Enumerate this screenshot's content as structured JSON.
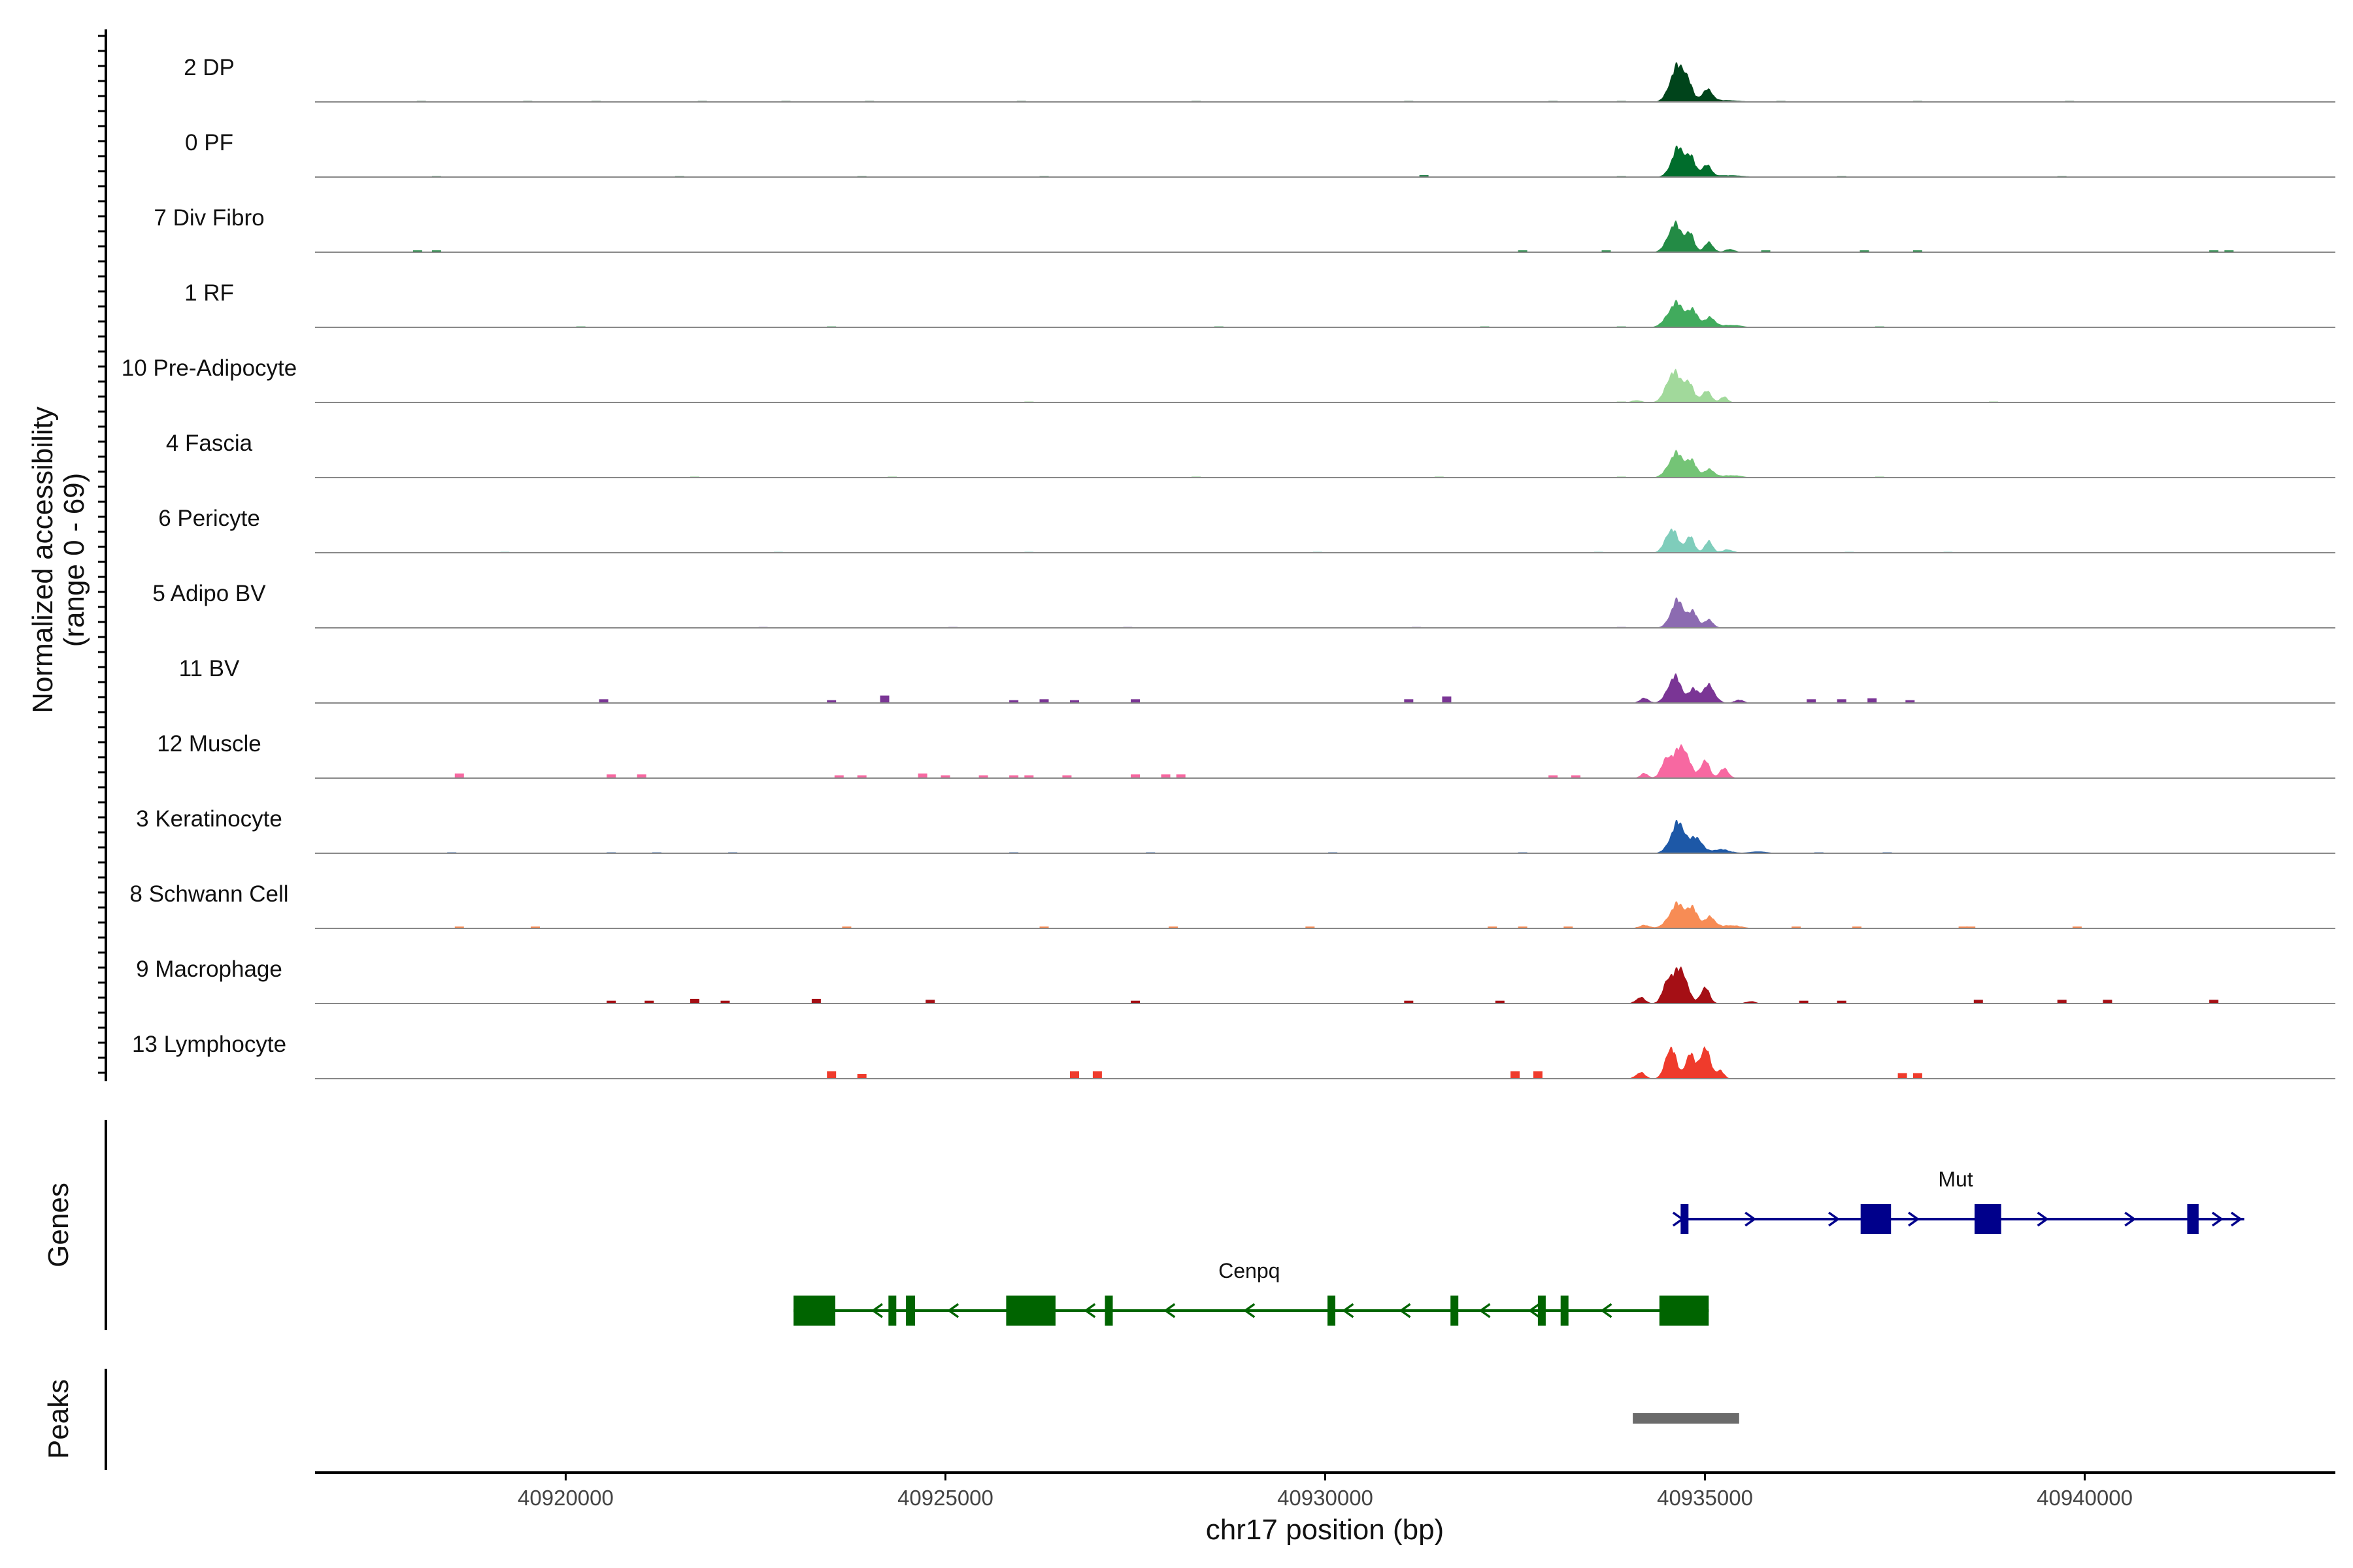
{
  "chart_data": {
    "type": "area",
    "title": "",
    "xlabel": "chr17 position (bp)",
    "ylabel": "Normalized accessibility",
    "ylabel_range": "(range 0 - 69)",
    "y_range": [
      0,
      69
    ],
    "xlim": [
      40916700,
      40943300
    ],
    "x_ticks": [
      40920000,
      40925000,
      40930000,
      40935000,
      40940000
    ],
    "tracks": [
      {
        "name": "2 DP",
        "color": "#00441b",
        "peaks": [
          [
            40934620,
            40,
            90
          ],
          [
            40934760,
            24,
            70
          ],
          [
            40935030,
            14,
            70
          ],
          [
            40935220,
            2,
            220
          ]
        ],
        "noise": [
          [
            40918100,
            1
          ],
          [
            40919500,
            1
          ],
          [
            40920400,
            1
          ],
          [
            40921800,
            1
          ],
          [
            40922900,
            1
          ],
          [
            40924000,
            1
          ],
          [
            40926000,
            1
          ],
          [
            40928300,
            1
          ],
          [
            40931100,
            1
          ],
          [
            40933000,
            1
          ],
          [
            40933900,
            1
          ],
          [
            40936000,
            1
          ],
          [
            40937800,
            1
          ],
          [
            40939800,
            1
          ]
        ]
      },
      {
        "name": "0 PF",
        "color": "#006d2c",
        "peaks": [
          [
            40934650,
            36,
            90
          ],
          [
            40934820,
            20,
            60
          ],
          [
            40935020,
            14,
            65
          ],
          [
            40935300,
            2,
            200
          ]
        ],
        "noise": [
          [
            40918300,
            1
          ],
          [
            40921500,
            1
          ],
          [
            40923900,
            1
          ],
          [
            40926300,
            1
          ],
          [
            40931300,
            2
          ],
          [
            40933900,
            1
          ],
          [
            40936800,
            1
          ],
          [
            40939700,
            1
          ]
        ]
      },
      {
        "name": "7 Div Fibro",
        "color": "#238b45",
        "peaks": [
          [
            40934600,
            35,
            90
          ],
          [
            40934800,
            22,
            60
          ],
          [
            40935050,
            12,
            60
          ],
          [
            40935330,
            4,
            60
          ]
        ],
        "noise": [
          [
            40918050,
            2
          ],
          [
            40918300,
            2
          ],
          [
            40932600,
            2
          ],
          [
            40933700,
            2
          ],
          [
            40935800,
            2
          ],
          [
            40937100,
            2
          ],
          [
            40937800,
            2
          ],
          [
            40941700,
            2
          ],
          [
            40941900,
            2
          ]
        ]
      },
      {
        "name": "1 RF",
        "color": "#41ab5d",
        "peaks": [
          [
            40934620,
            30,
            110
          ],
          [
            40934850,
            18,
            70
          ],
          [
            40935070,
            12,
            70
          ],
          [
            40935350,
            3,
            120
          ]
        ],
        "noise": [
          [
            40920200,
            1
          ],
          [
            40923500,
            1
          ],
          [
            40928600,
            1
          ],
          [
            40932100,
            1
          ],
          [
            40933900,
            1
          ],
          [
            40937300,
            1
          ]
        ]
      },
      {
        "name": "10 Pre-Adipocyte",
        "color": "#a1d99b",
        "peaks": [
          [
            40934580,
            38,
            90
          ],
          [
            40934780,
            24,
            70
          ],
          [
            40935020,
            14,
            65
          ],
          [
            40935250,
            7,
            50
          ],
          [
            40934100,
            3,
            60
          ]
        ],
        "noise": [
          [
            40926100,
            1
          ],
          [
            40933900,
            1
          ],
          [
            40938800,
            1
          ]
        ]
      },
      {
        "name": "4 Fascia",
        "color": "#74c476",
        "peaks": [
          [
            40934620,
            30,
            100
          ],
          [
            40934830,
            18,
            70
          ],
          [
            40935060,
            10,
            70
          ],
          [
            40935350,
            3,
            120
          ]
        ],
        "noise": [
          [
            40921700,
            1
          ],
          [
            40924300,
            1
          ],
          [
            40928300,
            1
          ],
          [
            40931500,
            1
          ],
          [
            40933900,
            1
          ],
          [
            40937300,
            1
          ]
        ]
      },
      {
        "name": "6 Pericyte",
        "color": "#7fcdbb",
        "peaks": [
          [
            40934560,
            30,
            80
          ],
          [
            40934800,
            20,
            60
          ],
          [
            40935050,
            14,
            55
          ],
          [
            40935300,
            4,
            70
          ]
        ],
        "noise": [
          [
            40919200,
            1
          ],
          [
            40922800,
            1
          ],
          [
            40926100,
            1
          ],
          [
            40929900,
            1
          ],
          [
            40933600,
            1
          ],
          [
            40936900,
            1
          ],
          [
            40938200,
            1
          ]
        ]
      },
      {
        "name": "5 Adipo BV",
        "color": "#8c6bb1",
        "peaks": [
          [
            40934640,
            34,
            90
          ],
          [
            40934850,
            18,
            60
          ],
          [
            40935050,
            10,
            60
          ]
        ],
        "noise": [
          [
            40922600,
            1
          ],
          [
            40925100,
            1
          ],
          [
            40927400,
            1
          ],
          [
            40931200,
            1
          ],
          [
            40933900,
            1
          ]
        ]
      },
      {
        "name": "11 BV",
        "color": "#7a3595",
        "peaks": [
          [
            40934600,
            33,
            90
          ],
          [
            40934850,
            16,
            60
          ],
          [
            40935050,
            22,
            80
          ],
          [
            40934200,
            6,
            60
          ],
          [
            40935450,
            4,
            60
          ]
        ],
        "noise": [
          [
            40920500,
            4
          ],
          [
            40923500,
            3
          ],
          [
            40924200,
            8
          ],
          [
            40925900,
            3
          ],
          [
            40926300,
            4
          ],
          [
            40926700,
            3
          ],
          [
            40927500,
            4
          ],
          [
            40931100,
            4
          ],
          [
            40931600,
            7
          ],
          [
            40936400,
            4
          ],
          [
            40936800,
            4
          ],
          [
            40937200,
            5
          ],
          [
            40937700,
            3
          ]
        ]
      },
      {
        "name": "12 Muscle",
        "color": "#f768a1",
        "peaks": [
          [
            40934700,
            40,
            90
          ],
          [
            40934500,
            24,
            70
          ],
          [
            40935000,
            22,
            60
          ],
          [
            40935250,
            12,
            60
          ],
          [
            40934200,
            6,
            50
          ]
        ],
        "noise": [
          [
            40918600,
            5
          ],
          [
            40920600,
            4
          ],
          [
            40921000,
            4
          ],
          [
            40923600,
            3
          ],
          [
            40923900,
            3
          ],
          [
            40924700,
            5
          ],
          [
            40925000,
            3
          ],
          [
            40925500,
            3
          ],
          [
            40925900,
            3
          ],
          [
            40926100,
            3
          ],
          [
            40926600,
            3
          ],
          [
            40927500,
            4
          ],
          [
            40927900,
            4
          ],
          [
            40928100,
            4
          ],
          [
            40933000,
            3
          ],
          [
            40933300,
            3
          ]
        ]
      },
      {
        "name": "3 Keratinocyte",
        "color": "#1d58a7",
        "peaks": [
          [
            40934650,
            38,
            100
          ],
          [
            40934900,
            18,
            70
          ],
          [
            40935200,
            5,
            120
          ],
          [
            40935700,
            2,
            120
          ]
        ],
        "noise": [
          [
            40918500,
            1
          ],
          [
            40920600,
            1
          ],
          [
            40921200,
            1
          ],
          [
            40922200,
            1
          ],
          [
            40925900,
            1
          ],
          [
            40927700,
            1
          ],
          [
            40930100,
            1
          ],
          [
            40932600,
            1
          ],
          [
            40936500,
            1
          ],
          [
            40937400,
            1
          ]
        ]
      },
      {
        "name": "8 Schwann Cell",
        "color": "#f78c55",
        "peaks": [
          [
            40934640,
            30,
            110
          ],
          [
            40934850,
            20,
            70
          ],
          [
            40935070,
            14,
            70
          ],
          [
            40935350,
            4,
            120
          ],
          [
            40934200,
            4,
            70
          ]
        ],
        "noise": [
          [
            40918600,
            2
          ],
          [
            40919600,
            2
          ],
          [
            40923700,
            2
          ],
          [
            40926300,
            2
          ],
          [
            40928000,
            2
          ],
          [
            40929800,
            2
          ],
          [
            40932200,
            2
          ],
          [
            40932600,
            2
          ],
          [
            40933200,
            2
          ],
          [
            40936200,
            2
          ],
          [
            40937000,
            2
          ],
          [
            40938400,
            2
          ],
          [
            40938500,
            2
          ],
          [
            40939900,
            2
          ]
        ]
      },
      {
        "name": "9 Macrophage",
        "color": "#a50f15",
        "peaks": [
          [
            40934690,
            42,
            80
          ],
          [
            40934520,
            30,
            70
          ],
          [
            40935000,
            20,
            60
          ],
          [
            40934150,
            8,
            60
          ],
          [
            40935600,
            3,
            60
          ]
        ],
        "noise": [
          [
            40920600,
            3
          ],
          [
            40921100,
            3
          ],
          [
            40921700,
            5
          ],
          [
            40922100,
            3
          ],
          [
            40923300,
            5
          ],
          [
            40924800,
            4
          ],
          [
            40927500,
            3
          ],
          [
            40931100,
            3
          ],
          [
            40932300,
            3
          ],
          [
            40936300,
            3
          ],
          [
            40936800,
            3
          ],
          [
            40938600,
            4
          ],
          [
            40939700,
            4
          ],
          [
            40940300,
            4
          ],
          [
            40941700,
            4
          ]
        ]
      },
      {
        "name": "13 Lymphocyte",
        "color": "#ef3b2c",
        "peaks": [
          [
            40934550,
            40,
            70
          ],
          [
            40934800,
            30,
            60
          ],
          [
            40935000,
            38,
            70
          ],
          [
            40935200,
            10,
            50
          ],
          [
            40934150,
            8,
            60
          ]
        ],
        "noise": [
          [
            40923500,
            8
          ],
          [
            40923900,
            5
          ],
          [
            40926700,
            8
          ],
          [
            40927000,
            8
          ],
          [
            40932500,
            8
          ],
          [
            40932800,
            8
          ],
          [
            40937600,
            6
          ],
          [
            40937800,
            6
          ]
        ]
      }
    ],
    "genes": [
      {
        "name": "Mut",
        "strand": "+",
        "start": 40934680,
        "end": 40942100,
        "color": "#00008b",
        "exons": [
          [
            40934680,
            40934780
          ],
          [
            40937050,
            40937450
          ],
          [
            40938550,
            40938900
          ],
          [
            40941350,
            40941500
          ]
        ],
        "arrows": [
          40934650,
          40935600,
          40936700,
          40937750,
          40939450,
          40940600,
          40941750,
          40942000
        ]
      },
      {
        "name": "Cenpq",
        "strand": "-",
        "start": 40923000,
        "end": 40935050,
        "color": "#006400",
        "exons": [
          [
            40923000,
            40923550
          ],
          [
            40924250,
            40924350
          ],
          [
            40924480,
            40924600
          ],
          [
            40925800,
            40926450
          ],
          [
            40927100,
            40927200
          ],
          [
            40930030,
            40930080
          ],
          [
            40931650,
            40931750
          ],
          [
            40932800,
            40932830
          ],
          [
            40933100,
            40933200
          ],
          [
            40934400,
            40935050
          ]
        ],
        "arrows": [
          40924100,
          40925100,
          40926900,
          40927950,
          40929000,
          40930300,
          40931050,
          40932100,
          40932750,
          40933700
        ]
      }
    ],
    "peaks_track": [
      {
        "start": 40934050,
        "end": 40935450
      }
    ],
    "panel_labels": {
      "genes": "Genes",
      "peaks": "Peaks"
    }
  }
}
